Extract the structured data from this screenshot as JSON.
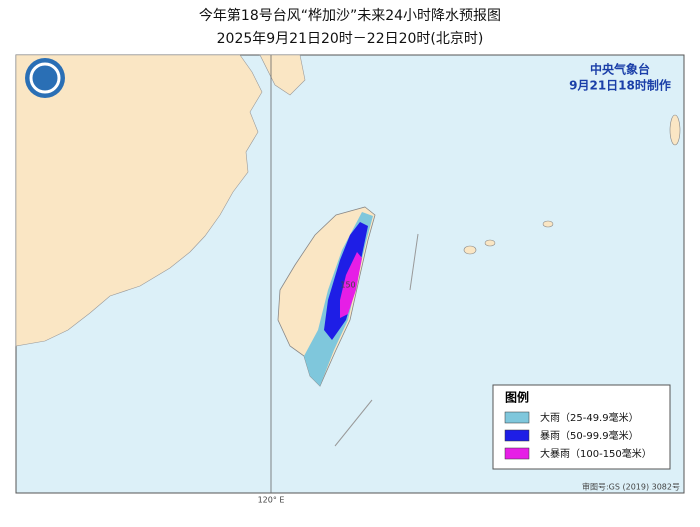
{
  "header": {
    "title": "今年第18号台风“桦加沙”未来24小时降水预报图",
    "subtitle": "2025年9月21日20时－22日20时(北京时)"
  },
  "issuer": {
    "agency": "中央气象台",
    "issued": "9月21日18时制作"
  },
  "map": {
    "max_label": "150",
    "longitude_label": "120° E",
    "approval": "审图号:GS (2019) 3082号"
  },
  "legend": {
    "title": "图例",
    "items": [
      "大雨（25-49.9毫米）",
      "暴雨（50-99.9毫米）",
      "大暴雨（100-150毫米）"
    ]
  }
}
